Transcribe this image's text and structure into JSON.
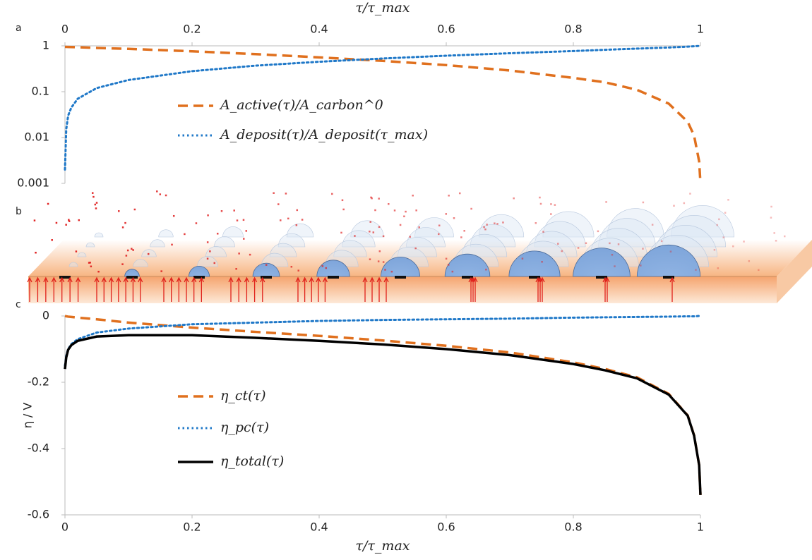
{
  "chart_data": [
    {
      "type": "line",
      "panel": "a",
      "x_label": "τ/τ_max",
      "xaxis": "top",
      "yscale": "log",
      "xlim": [
        0,
        1
      ],
      "xticks": [
        0,
        0.2,
        0.4,
        0.6,
        0.8,
        1
      ],
      "ylim": [
        0.001,
        1
      ],
      "yticks": [
        0.001,
        0.01,
        0.1,
        1
      ],
      "x": [
        0,
        0.002,
        0.005,
        0.01,
        0.02,
        0.05,
        0.1,
        0.2,
        0.3,
        0.4,
        0.5,
        0.6,
        0.7,
        0.8,
        0.85,
        0.9,
        0.95,
        0.98,
        0.99,
        0.998,
        1
      ],
      "series": [
        {
          "name": "A_active(τ)/A_carbon^0",
          "color": "#e0701e",
          "style": "dashed",
          "values": [
            0.95,
            0.948,
            0.945,
            0.94,
            0.93,
            0.9,
            0.86,
            0.76,
            0.66,
            0.56,
            0.47,
            0.38,
            0.29,
            0.2,
            0.16,
            0.11,
            0.055,
            0.022,
            0.011,
            0.003,
            0.001
          ]
        },
        {
          "name": "A_deposit(τ)/A_deposit(τ_max)",
          "color": "#1f78c8",
          "style": "dotted",
          "values": [
            0.002,
            0.015,
            0.03,
            0.045,
            0.07,
            0.12,
            0.18,
            0.28,
            0.37,
            0.45,
            0.53,
            0.61,
            0.69,
            0.77,
            0.82,
            0.87,
            0.92,
            0.96,
            0.98,
            0.995,
            1
          ]
        }
      ]
    },
    {
      "type": "line",
      "panel": "c",
      "x_label": "τ/τ_max",
      "y_label": "η / V",
      "xaxis": "bottom",
      "yscale": "linear",
      "xlim": [
        0,
        1
      ],
      "xticks": [
        0,
        0.2,
        0.4,
        0.6,
        0.8,
        1
      ],
      "ylim": [
        -0.6,
        0
      ],
      "yticks": [
        -0.6,
        -0.4,
        -0.2,
        0
      ],
      "x": [
        0,
        0.002,
        0.005,
        0.01,
        0.02,
        0.05,
        0.1,
        0.2,
        0.3,
        0.4,
        0.5,
        0.6,
        0.7,
        0.8,
        0.85,
        0.9,
        0.95,
        0.98,
        0.99,
        0.998,
        1
      ],
      "series": [
        {
          "name": "η_ct(τ)",
          "color": "#e0701e",
          "style": "dashed",
          "values": [
            0,
            -0.001,
            -0.002,
            -0.003,
            -0.005,
            -0.01,
            -0.02,
            -0.035,
            -0.048,
            -0.06,
            -0.074,
            -0.09,
            -0.11,
            -0.14,
            -0.16,
            -0.185,
            -0.235,
            -0.3,
            -0.36,
            -0.45,
            -0.54
          ]
        },
        {
          "name": "η_pc(τ)",
          "color": "#1f78c8",
          "style": "dotted",
          "values": [
            -0.15,
            -0.12,
            -0.1,
            -0.085,
            -0.07,
            -0.05,
            -0.038,
            -0.025,
            -0.02,
            -0.015,
            -0.012,
            -0.01,
            -0.008,
            -0.005,
            -0.004,
            -0.003,
            -0.002,
            -0.001,
            -0.001,
            0,
            0
          ]
        },
        {
          "name": "η_total(τ)",
          "color": "#000000",
          "style": "solid",
          "values": [
            -0.16,
            -0.125,
            -0.102,
            -0.088,
            -0.075,
            -0.062,
            -0.058,
            -0.058,
            -0.066,
            -0.075,
            -0.086,
            -0.1,
            -0.118,
            -0.145,
            -0.164,
            -0.188,
            -0.237,
            -0.301,
            -0.361,
            -0.45,
            -0.54
          ]
        }
      ]
    }
  ],
  "panel_b": {
    "label": "b"
  }
}
